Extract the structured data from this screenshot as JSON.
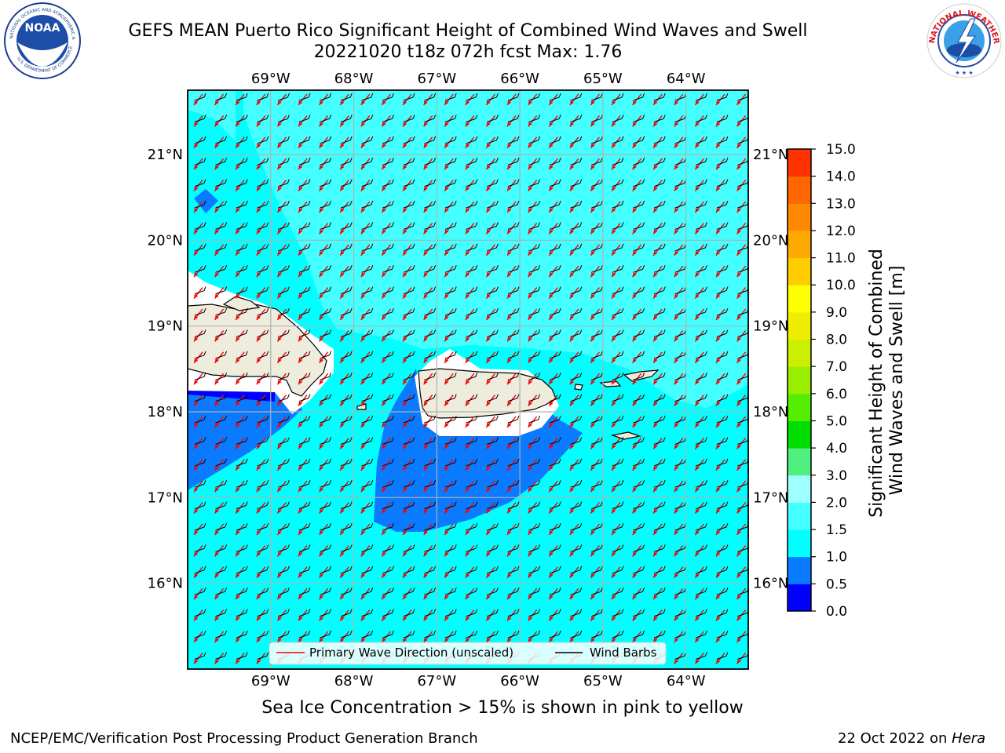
{
  "header": {
    "title_line1": "GEFS MEAN Puerto Rico Significant Height of Combined Wind Waves and Swell",
    "title_line2": "20221020 t18z 072h fcst   Max: 1.76"
  },
  "logos": {
    "left": "noaa-logo",
    "right": "nws-logo",
    "noaa_text": "NOAA",
    "noaa_ring_top": "NATIONAL OCEANIC AND ATMOSPHERIC ADMINISTRATION",
    "noaa_ring_bottom": "U.S. DEPARTMENT OF COMMERCE",
    "nws_ring": "NATIONAL WEATHER SERVICE"
  },
  "map": {
    "lon_labels": [
      "69°W",
      "68°W",
      "67°W",
      "66°W",
      "65°W",
      "64°W"
    ],
    "lat_labels": [
      "21°N",
      "20°N",
      "19°N",
      "18°N",
      "17°N",
      "16°N"
    ],
    "lon_values": [
      -69,
      -68,
      -67,
      -66,
      -65,
      -64
    ],
    "lat_values": [
      21,
      20,
      19,
      18,
      17,
      16
    ],
    "extent": {
      "lon_min": -70.0,
      "lon_max": -63.25,
      "lat_min": 15.0,
      "lat_max": 21.75
    },
    "colors": {
      "land": "#eeecdc",
      "sea_1_0_1_5": "#00ffff",
      "sea_1_5_2_0": "#44ffff",
      "sea_0_5_1_0": "#0a7aff",
      "sea_0_0_0_5": "#0000ff",
      "arrow": "#ff0000",
      "barb": "#000000",
      "grid": "#b0b0b0"
    }
  },
  "legend": {
    "wave_label": "Primary Wave Direction (unscaled)",
    "barb_label": "Wind Barbs"
  },
  "colorbar": {
    "ticks": [
      "15.0",
      "14.0",
      "13.0",
      "12.0",
      "11.0",
      "10.0",
      "9.0",
      "8.0",
      "7.0",
      "6.0",
      "5.0",
      "4.0",
      "3.0",
      "2.0",
      "1.5",
      "1.0",
      "0.5",
      "0.0"
    ],
    "label_line1": "Significant Height of Combined",
    "label_line2": "Wind Waves and Swell [m]",
    "colors_bottom_to_top": [
      "#0000ff",
      "#0a7aff",
      "#00ffff",
      "#44ffff",
      "#a0ffff",
      "#50f080",
      "#00dd00",
      "#55ee00",
      "#99ee00",
      "#ccee00",
      "#eeee00",
      "#ffff00",
      "#ffcc00",
      "#ffaa00",
      "#ff8800",
      "#ff6600",
      "#ff3300",
      "#ff0000"
    ]
  },
  "note": "Sea Ice Concentration > 15% is shown in pink to yellow",
  "footer": {
    "left": "NCEP/EMC/Verification Post Processing Product Generation Branch",
    "right_prefix": "22 Oct 2022 on ",
    "right_italic": "Hera"
  }
}
